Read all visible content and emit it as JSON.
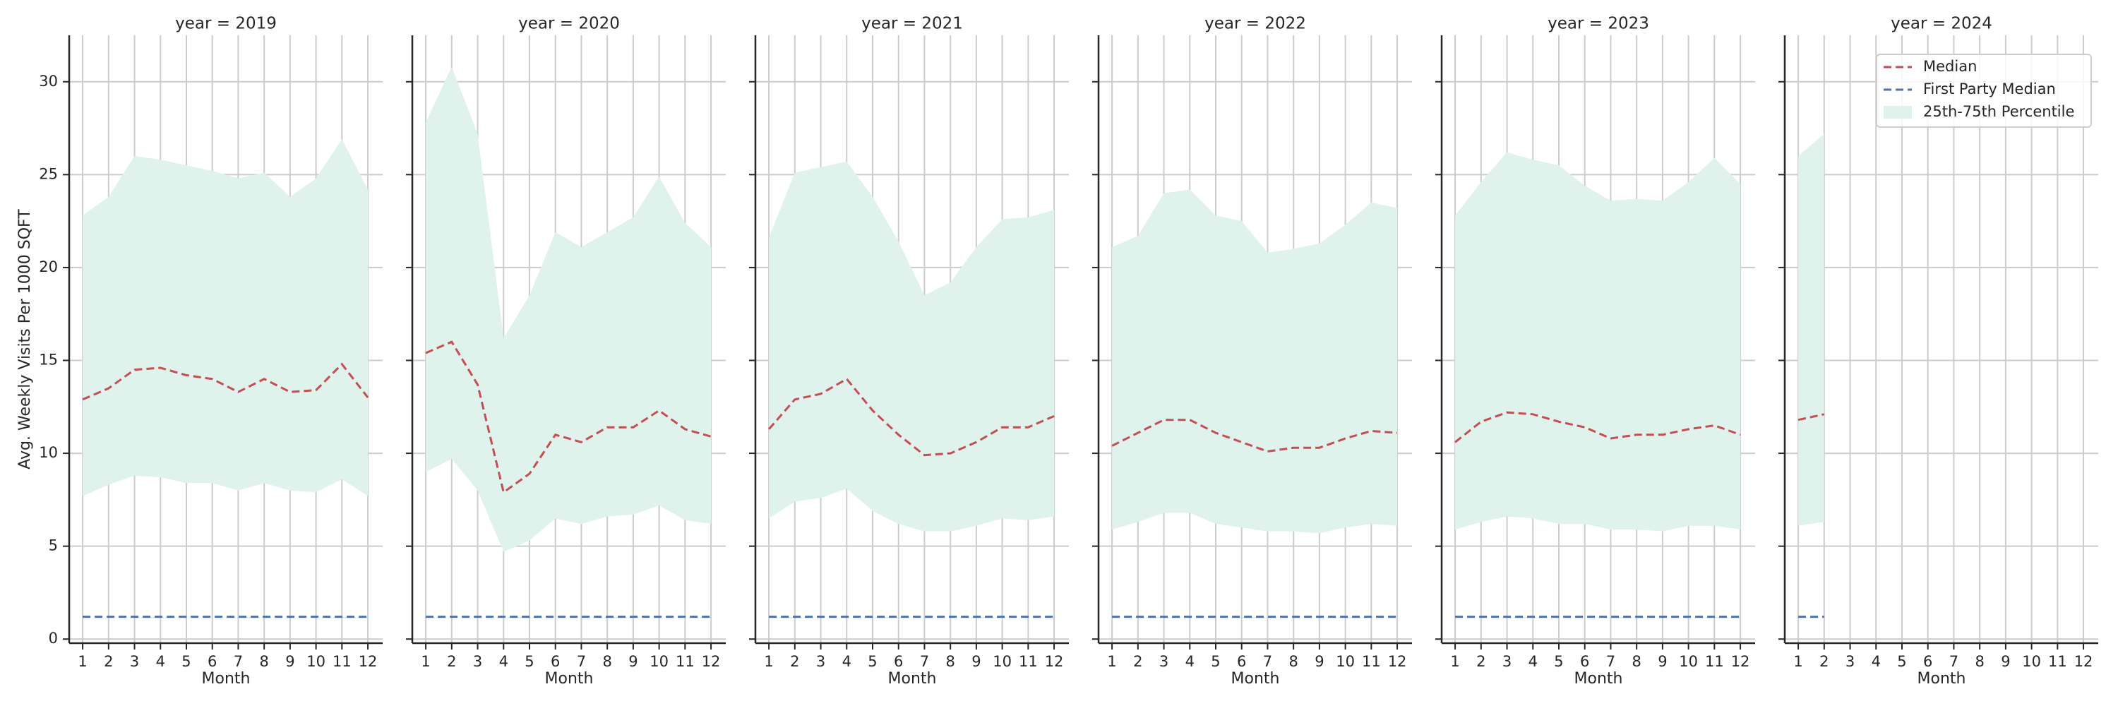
{
  "chart_data": [
    {
      "type": "line",
      "title": "year = 2019",
      "xlabel": "Month",
      "ylabel": "Avg. Weekly Visits Per 1000 SQFT",
      "x": [
        1,
        2,
        3,
        4,
        5,
        6,
        7,
        8,
        9,
        10,
        11,
        12
      ],
      "xlim": [
        0.48,
        12.57
      ],
      "ylim": [
        -0.22,
        32.5
      ],
      "xticks": [
        1,
        2,
        3,
        4,
        5,
        6,
        7,
        8,
        9,
        10,
        11,
        12
      ],
      "yticks": [
        0,
        5,
        10,
        15,
        20,
        25,
        30
      ],
      "grid": true,
      "show_ytick_labels": true,
      "series": [
        {
          "name": "Median",
          "color": "#c44e52",
          "values": [
            12.9,
            13.5,
            14.5,
            14.6,
            14.2,
            14.0,
            13.3,
            14.0,
            13.3,
            13.4,
            14.8,
            13.0
          ]
        },
        {
          "name": "First Party Median",
          "color": "#4c72b0",
          "values": [
            1.2,
            1.2,
            1.2,
            1.2,
            1.2,
            1.2,
            1.2,
            1.2,
            1.2,
            1.2,
            1.2,
            1.2
          ]
        },
        {
          "name": "25th-75th Percentile",
          "color": "#dff2ec",
          "lower": [
            7.7,
            8.3,
            8.8,
            8.7,
            8.4,
            8.4,
            8.0,
            8.4,
            8.0,
            7.9,
            8.6,
            7.7
          ],
          "upper": [
            22.8,
            23.8,
            26.0,
            25.8,
            25.5,
            25.2,
            24.8,
            25.1,
            23.8,
            24.8,
            26.9,
            24.2
          ]
        }
      ]
    },
    {
      "type": "line",
      "title": "year = 2020",
      "xlabel": "Month",
      "x": [
        1,
        2,
        3,
        4,
        5,
        6,
        7,
        8,
        9,
        10,
        11,
        12
      ],
      "xlim": [
        0.48,
        12.57
      ],
      "ylim": [
        -0.22,
        32.5
      ],
      "xticks": [
        1,
        2,
        3,
        4,
        5,
        6,
        7,
        8,
        9,
        10,
        11,
        12
      ],
      "yticks": [
        0,
        5,
        10,
        15,
        20,
        25,
        30
      ],
      "grid": true,
      "show_ytick_labels": false,
      "series": [
        {
          "name": "Median",
          "color": "#c44e52",
          "values": [
            15.4,
            16.0,
            13.7,
            7.9,
            8.9,
            11.0,
            10.6,
            11.4,
            11.4,
            12.3,
            11.3,
            10.9
          ]
        },
        {
          "name": "First Party Median",
          "color": "#4c72b0",
          "values": [
            1.2,
            1.2,
            1.2,
            1.2,
            1.2,
            1.2,
            1.2,
            1.2,
            1.2,
            1.2,
            1.2,
            1.2
          ]
        },
        {
          "name": "25th-75th Percentile",
          "color": "#dff2ec",
          "lower": [
            9.0,
            9.7,
            8.0,
            4.7,
            5.3,
            6.5,
            6.2,
            6.6,
            6.7,
            7.2,
            6.4,
            6.2
          ],
          "upper": [
            27.8,
            30.8,
            27.2,
            16.2,
            18.5,
            21.9,
            21.1,
            21.9,
            22.7,
            24.9,
            22.4,
            21.1
          ]
        }
      ]
    },
    {
      "type": "line",
      "title": "year = 2021",
      "xlabel": "Month",
      "x": [
        1,
        2,
        3,
        4,
        5,
        6,
        7,
        8,
        9,
        10,
        11,
        12
      ],
      "xlim": [
        0.48,
        12.57
      ],
      "ylim": [
        -0.22,
        32.5
      ],
      "xticks": [
        1,
        2,
        3,
        4,
        5,
        6,
        7,
        8,
        9,
        10,
        11,
        12
      ],
      "yticks": [
        0,
        5,
        10,
        15,
        20,
        25,
        30
      ],
      "grid": true,
      "show_ytick_labels": false,
      "series": [
        {
          "name": "Median",
          "color": "#c44e52",
          "values": [
            11.3,
            12.9,
            13.2,
            14.0,
            12.3,
            11.0,
            9.9,
            10.0,
            10.6,
            11.4,
            11.4,
            12.0
          ]
        },
        {
          "name": "First Party Median",
          "color": "#4c72b0",
          "values": [
            1.2,
            1.2,
            1.2,
            1.2,
            1.2,
            1.2,
            1.2,
            1.2,
            1.2,
            1.2,
            1.2,
            1.2
          ]
        },
        {
          "name": "25th-75th Percentile",
          "color": "#dff2ec",
          "lower": [
            6.5,
            7.4,
            7.6,
            8.1,
            6.9,
            6.2,
            5.8,
            5.8,
            6.1,
            6.5,
            6.4,
            6.6
          ],
          "upper": [
            21.6,
            25.1,
            25.4,
            25.7,
            23.8,
            21.4,
            18.5,
            19.2,
            21.1,
            22.6,
            22.7,
            23.1
          ]
        }
      ]
    },
    {
      "type": "line",
      "title": "year = 2022",
      "xlabel": "Month",
      "x": [
        1,
        2,
        3,
        4,
        5,
        6,
        7,
        8,
        9,
        10,
        11,
        12
      ],
      "xlim": [
        0.48,
        12.57
      ],
      "ylim": [
        -0.22,
        32.5
      ],
      "xticks": [
        1,
        2,
        3,
        4,
        5,
        6,
        7,
        8,
        9,
        10,
        11,
        12
      ],
      "yticks": [
        0,
        5,
        10,
        15,
        20,
        25,
        30
      ],
      "grid": true,
      "show_ytick_labels": false,
      "series": [
        {
          "name": "Median",
          "color": "#c44e52",
          "values": [
            10.4,
            11.1,
            11.8,
            11.8,
            11.1,
            10.6,
            10.1,
            10.3,
            10.3,
            10.8,
            11.2,
            11.1
          ]
        },
        {
          "name": "First Party Median",
          "color": "#4c72b0",
          "values": [
            1.2,
            1.2,
            1.2,
            1.2,
            1.2,
            1.2,
            1.2,
            1.2,
            1.2,
            1.2,
            1.2,
            1.2
          ]
        },
        {
          "name": "25th-75th Percentile",
          "color": "#dff2ec",
          "lower": [
            5.9,
            6.3,
            6.8,
            6.8,
            6.2,
            6.0,
            5.8,
            5.8,
            5.7,
            6.0,
            6.2,
            6.1
          ],
          "upper": [
            21.1,
            21.7,
            24.0,
            24.2,
            22.8,
            22.5,
            20.8,
            21.0,
            21.3,
            22.3,
            23.5,
            23.2
          ]
        }
      ]
    },
    {
      "type": "line",
      "title": "year = 2023",
      "xlabel": "Month",
      "x": [
        1,
        2,
        3,
        4,
        5,
        6,
        7,
        8,
        9,
        10,
        11,
        12
      ],
      "xlim": [
        0.48,
        12.57
      ],
      "ylim": [
        -0.22,
        32.5
      ],
      "xticks": [
        1,
        2,
        3,
        4,
        5,
        6,
        7,
        8,
        9,
        10,
        11,
        12
      ],
      "yticks": [
        0,
        5,
        10,
        15,
        20,
        25,
        30
      ],
      "grid": true,
      "show_ytick_labels": false,
      "series": [
        {
          "name": "Median",
          "color": "#c44e52",
          "values": [
            10.6,
            11.7,
            12.2,
            12.1,
            11.7,
            11.4,
            10.8,
            11.0,
            11.0,
            11.3,
            11.5,
            11.0
          ]
        },
        {
          "name": "First Party Median",
          "color": "#4c72b0",
          "values": [
            1.2,
            1.2,
            1.2,
            1.2,
            1.2,
            1.2,
            1.2,
            1.2,
            1.2,
            1.2,
            1.2,
            1.2
          ]
        },
        {
          "name": "25th-75th Percentile",
          "color": "#dff2ec",
          "lower": [
            5.9,
            6.3,
            6.6,
            6.5,
            6.2,
            6.2,
            5.9,
            5.9,
            5.8,
            6.1,
            6.1,
            5.9
          ],
          "upper": [
            22.8,
            24.6,
            26.2,
            25.8,
            25.5,
            24.4,
            23.6,
            23.7,
            23.6,
            24.6,
            25.9,
            24.5
          ]
        }
      ]
    },
    {
      "type": "line",
      "title": "year = 2024",
      "xlabel": "Month",
      "x": [
        1,
        2,
        3,
        4,
        5,
        6,
        7,
        8,
        9,
        10,
        11,
        12
      ],
      "xlim": [
        0.48,
        12.57
      ],
      "ylim": [
        -0.22,
        32.5
      ],
      "xticks": [
        1,
        2,
        3,
        4,
        5,
        6,
        7,
        8,
        9,
        10,
        11,
        12
      ],
      "yticks": [
        0,
        5,
        10,
        15,
        20,
        25,
        30
      ],
      "grid": true,
      "show_ytick_labels": false,
      "legend": "upper right",
      "series": [
        {
          "name": "Median",
          "color": "#c44e52",
          "values": [
            11.8,
            12.1,
            null,
            null,
            null,
            null,
            null,
            null,
            null,
            null,
            null,
            null
          ]
        },
        {
          "name": "First Party Median",
          "color": "#4c72b0",
          "values": [
            1.2,
            1.2,
            null,
            null,
            null,
            null,
            null,
            null,
            null,
            null,
            null,
            null
          ]
        },
        {
          "name": "25th-75th Percentile",
          "color": "#dff2ec",
          "lower": [
            6.1,
            6.3,
            null,
            null,
            null,
            null,
            null,
            null,
            null,
            null,
            null,
            null
          ],
          "upper": [
            26.0,
            27.2,
            null,
            null,
            null,
            null,
            null,
            null,
            null,
            null,
            null,
            null
          ]
        }
      ]
    }
  ]
}
